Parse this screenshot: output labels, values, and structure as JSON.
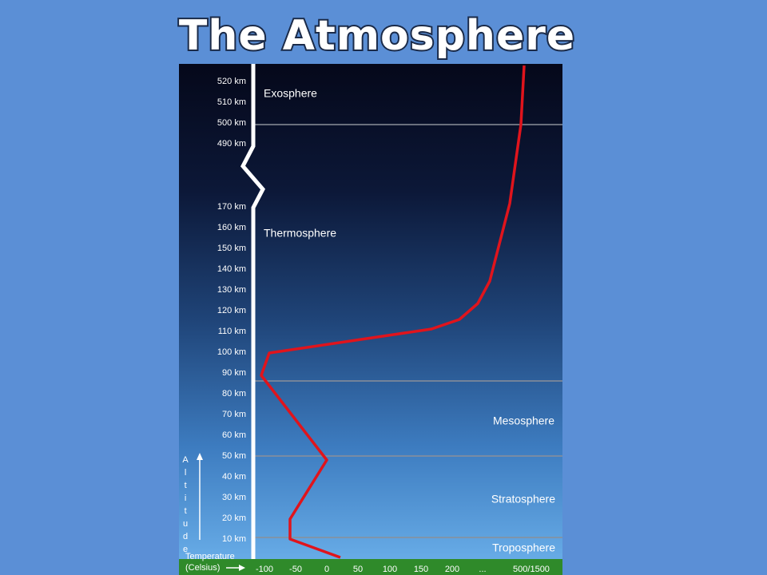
{
  "title": "The Atmosphere",
  "altitude_labels": [
    "520 km",
    "510 km",
    "500 km",
    "490 km",
    "170 km",
    "160 km",
    "150 km",
    "140 km",
    "130 km",
    "120 km",
    "110 km",
    "100 km",
    "90 km",
    "80 km",
    "70 km",
    "60 km",
    "50 km",
    "40 km",
    "30 km",
    "20 km",
    "10 km"
  ],
  "altitude_axis_label": "Altitude",
  "layers": [
    "Exosphere",
    "Thermosphere",
    "Mesosphere",
    "Stratosphere",
    "Troposphere"
  ],
  "temperature_axis_label": [
    "Temperature",
    "(Celsius)"
  ],
  "temperature_labels": [
    "-100",
    "-50",
    "0",
    "50",
    "100",
    "150",
    "200",
    "...",
    "500/1500"
  ]
}
